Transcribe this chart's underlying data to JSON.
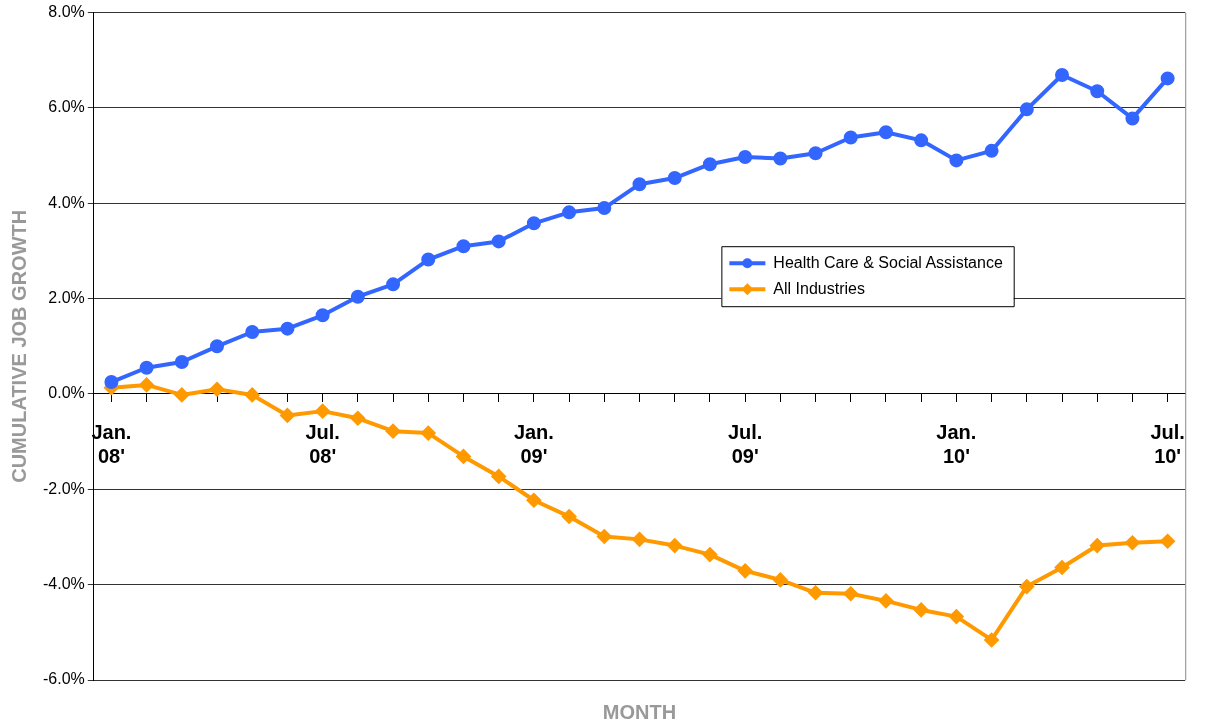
{
  "chart_data": {
    "type": "line",
    "xlabel": "MONTH",
    "ylabel": "CUMULATIVE JOB GROWTH",
    "categories": [
      "Jan. 08'",
      null,
      null,
      null,
      null,
      null,
      "Jul. 08'",
      null,
      null,
      null,
      null,
      null,
      "Jan. 09'",
      null,
      null,
      null,
      null,
      null,
      "Jul. 09'",
      null,
      null,
      null,
      null,
      null,
      "Jan. 10'",
      null,
      null,
      null,
      null,
      null,
      "Jul. 10'"
    ],
    "series": [
      {
        "name": "Health Care & Social Assistance",
        "color": "#3366ff",
        "marker": "circle",
        "values": [
          0.25,
          0.55,
          0.67,
          1.0,
          1.3,
          1.37,
          1.65,
          2.04,
          2.3,
          2.82,
          3.1,
          3.2,
          3.58,
          3.81,
          3.9,
          4.4,
          4.53,
          4.82,
          4.97,
          4.94,
          5.05,
          5.38,
          5.49,
          5.32,
          4.9,
          5.1,
          5.97,
          6.69,
          6.35,
          5.78,
          6.62
        ]
      },
      {
        "name": "All Industries",
        "color": "#ff9900",
        "marker": "diamond",
        "values": [
          0.13,
          0.19,
          -0.02,
          0.1,
          -0.02,
          -0.45,
          -0.36,
          -0.51,
          -0.78,
          -0.82,
          -1.31,
          -1.73,
          -2.23,
          -2.57,
          -2.99,
          -3.05,
          -3.18,
          -3.37,
          -3.71,
          -3.9,
          -4.17,
          -4.19,
          -4.34,
          -4.53,
          -4.67,
          -5.16,
          -4.04,
          -3.64,
          -3.18,
          -3.12,
          -3.09
        ]
      }
    ],
    "ylim": [
      -6,
      8
    ],
    "yticks": [
      {
        "value": -6,
        "label": "-6.0%"
      },
      {
        "value": -4,
        "label": "-4.0%"
      },
      {
        "value": -2,
        "label": "-2.0%"
      },
      {
        "value": 0,
        "label": "0.0%"
      },
      {
        "value": 2,
        "label": "2.0%"
      },
      {
        "value": 4,
        "label": "4.0%"
      },
      {
        "value": 6,
        "label": "6.0%"
      },
      {
        "value": 8,
        "label": "8.0%"
      }
    ],
    "grid": "y",
    "legend": "right",
    "line_style": "solid"
  }
}
